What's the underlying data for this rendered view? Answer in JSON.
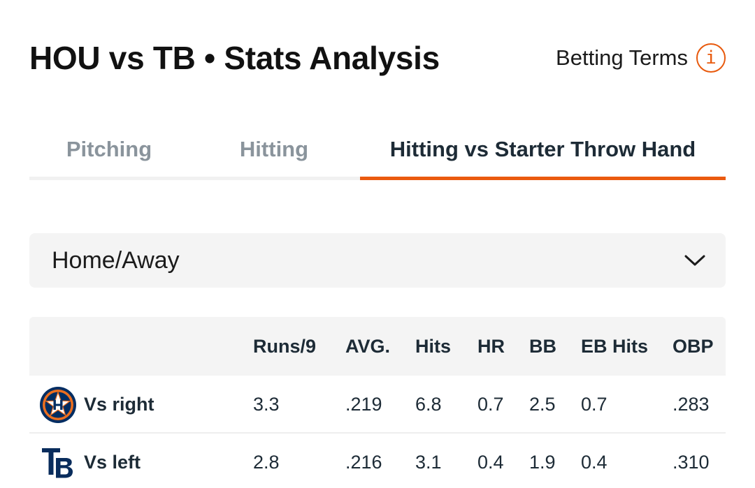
{
  "header": {
    "title": "HOU vs TB • Stats Analysis",
    "betting_terms_label": "Betting Terms",
    "info_glyph": "i",
    "info_icon": "info-circle-icon"
  },
  "tabs": [
    {
      "label": "Pitching",
      "active": false
    },
    {
      "label": "Hitting",
      "active": false
    },
    {
      "label": "Hitting vs Starter Throw Hand",
      "active": true
    }
  ],
  "filter": {
    "selected": "Home/Away",
    "icon": "chevron-down-icon"
  },
  "table": {
    "columns": [
      "",
      "Runs/9",
      "AVG.",
      "Hits",
      "HR",
      "BB",
      "EB Hits",
      "OBP"
    ],
    "rows": [
      {
        "team_logo": "houston-astros-logo",
        "label": "Vs right",
        "values": [
          "3.3",
          ".219",
          "6.8",
          "0.7",
          "2.5",
          "0.7",
          ".283"
        ]
      },
      {
        "team_logo": "tampa-bay-rays-logo",
        "label": "Vs left",
        "values": [
          "2.8",
          ".216",
          "3.1",
          "0.4",
          "1.9",
          "0.4",
          ".310"
        ]
      }
    ]
  },
  "colors": {
    "accent": "#ea5a0f",
    "text_primary": "#1d2b36",
    "text_muted": "#8a949c",
    "panel_bg": "#f4f4f4",
    "astros_navy": "#002d62",
    "astros_orange": "#eb6e1f",
    "rays_navy": "#092c5c"
  }
}
